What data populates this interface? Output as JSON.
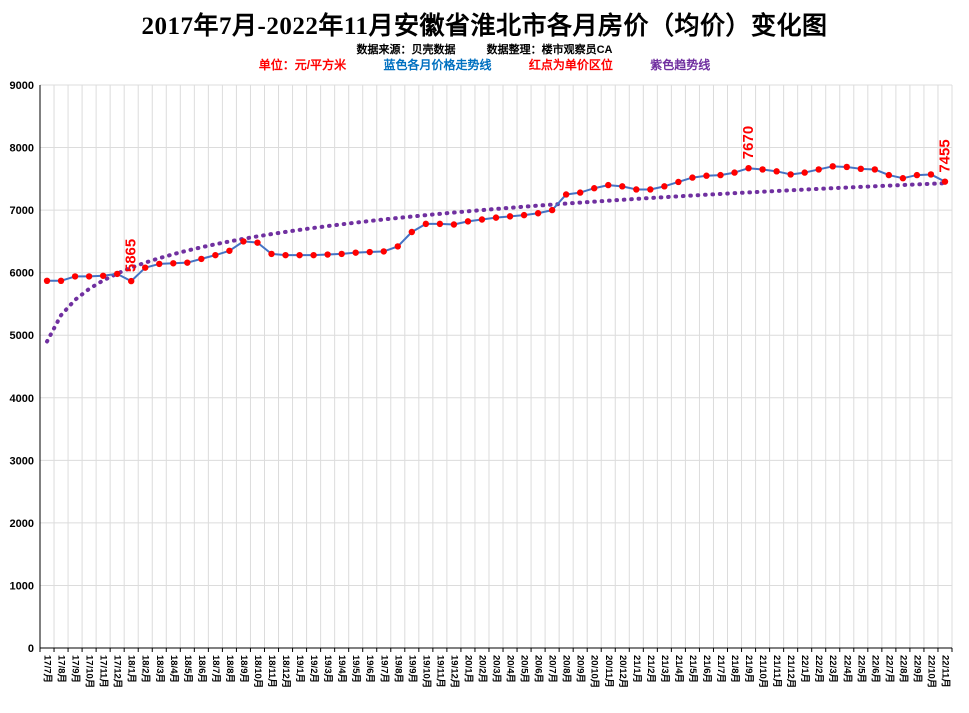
{
  "page": {
    "title": "2017年7月-2022年11月安徽省淮北市各月房价（均价）变化图",
    "source_label": "数据来源：贝壳数据",
    "editor_label": "数据整理：楼市观察员CA",
    "legend": {
      "unit": {
        "text": "单位：元/平方米",
        "color": "#FF0000"
      },
      "blue_line": {
        "text": "蓝色各月价格走势线",
        "color": "#0070C0"
      },
      "red_dot": {
        "text": "红点为单价区位",
        "color": "#FF0000"
      },
      "purple_trend": {
        "text": "紫色趋势线",
        "color": "#7030A0"
      }
    }
  },
  "chart_data": {
    "type": "line",
    "title": "2017年7月-2022年11月安徽省淮北市各月房价（均价）变化图",
    "xlabel": "",
    "ylabel": "元/平方米",
    "ylim": [
      0,
      9000
    ],
    "ytick_interval": 1000,
    "grid": true,
    "annotation_color": "#FF0000",
    "categories": [
      "17/7月",
      "17/8月",
      "17/9月",
      "17/10月",
      "17/11月",
      "17/12月",
      "18/1月",
      "18/2月",
      "18/3月",
      "18/4月",
      "18/5月",
      "18/6月",
      "18/7月",
      "18/8月",
      "18/9月",
      "18/10月",
      "18/11月",
      "18/12月",
      "19/1月",
      "19/2月",
      "19/3月",
      "19/4月",
      "19/5月",
      "19/6月",
      "19/7月",
      "19/8月",
      "19/9月",
      "19/10月",
      "19/11月",
      "19/12月",
      "20/1月",
      "20/2月",
      "20/3月",
      "20/4月",
      "20/5月",
      "20/6月",
      "20/7月",
      "20/8月",
      "20/9月",
      "20/10月",
      "20/11月",
      "20/12月",
      "21/1月",
      "21/2月",
      "21/3月",
      "21/4月",
      "21/5月",
      "21/6月",
      "21/7月",
      "21/8月",
      "21/9月",
      "21/10月",
      "21/11月",
      "21/12月",
      "22/1月",
      "22/2月",
      "22/3月",
      "22/4月",
      "22/5月",
      "22/6月",
      "22/7月",
      "22/8月",
      "22/9月",
      "22/10月",
      "22/11月"
    ],
    "series": [
      {
        "name": "各月价格走势线",
        "color": "#4472C4",
        "marker_color": "#FF0000",
        "values": [
          5870,
          5870,
          5940,
          5940,
          5950,
          5980,
          5865,
          6080,
          6140,
          6150,
          6160,
          6220,
          6280,
          6350,
          6500,
          6480,
          6300,
          6280,
          6280,
          6280,
          6290,
          6300,
          6320,
          6330,
          6340,
          6420,
          6650,
          6780,
          6780,
          6770,
          6820,
          6850,
          6880,
          6900,
          6920,
          6950,
          7000,
          7250,
          7280,
          7350,
          7400,
          7380,
          7330,
          7330,
          7380,
          7450,
          7520,
          7550,
          7560,
          7600,
          7670,
          7650,
          7620,
          7570,
          7600,
          7650,
          7700,
          7690,
          7660,
          7650,
          7560,
          7510,
          7560,
          7570,
          7455
        ]
      },
      {
        "name": "趋势线",
        "color": "#7030A0",
        "style": "dotted",
        "trend": {
          "form": "log",
          "a": 606,
          "b": 4900
        }
      }
    ],
    "annotations": [
      {
        "index": 6,
        "text": "5865"
      },
      {
        "index": 50,
        "text": "7670"
      },
      {
        "index": 64,
        "text": "7455"
      }
    ]
  }
}
